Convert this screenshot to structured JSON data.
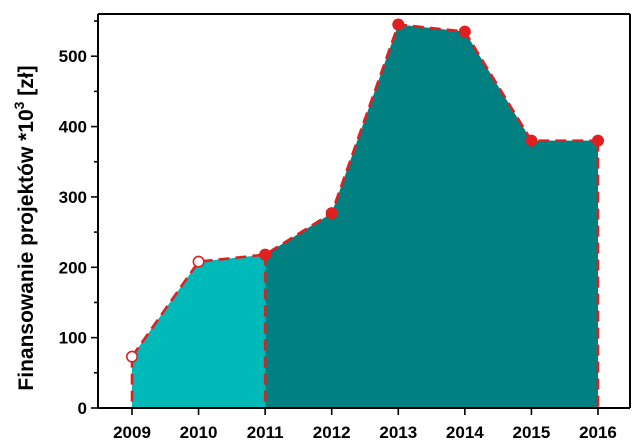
{
  "chart_data": {
    "type": "area",
    "title": "",
    "xlabel": "",
    "ylabel": "Finansowanie projektów *10",
    "ylabel_superscript": "3",
    "ylabel_unit": " [zł]",
    "categories": [
      "2009",
      "2010",
      "2011",
      "2012",
      "2013",
      "2014",
      "2015",
      "2016"
    ],
    "values": [
      73,
      208,
      218,
      277,
      545,
      535,
      380,
      380
    ],
    "xlim": [
      2009,
      2016
    ],
    "ylim": [
      0,
      560
    ],
    "y_ticks": [
      0,
      100,
      200,
      300,
      400,
      500
    ],
    "grid": false,
    "legend": "none",
    "series": [
      {
        "x": [
          "2009",
          "2010",
          "2011"
        ],
        "values": [
          73,
          208,
          218
        ],
        "fill_color": "#00BABA",
        "marker": "hollow-circle"
      },
      {
        "x": [
          "2011",
          "2012",
          "2013",
          "2014",
          "2015",
          "2016"
        ],
        "values": [
          218,
          277,
          545,
          535,
          380,
          380
        ],
        "fill_color": "#008080",
        "marker": "filled-circle"
      }
    ],
    "line_color": "#E02020",
    "line_style": "dashed"
  }
}
